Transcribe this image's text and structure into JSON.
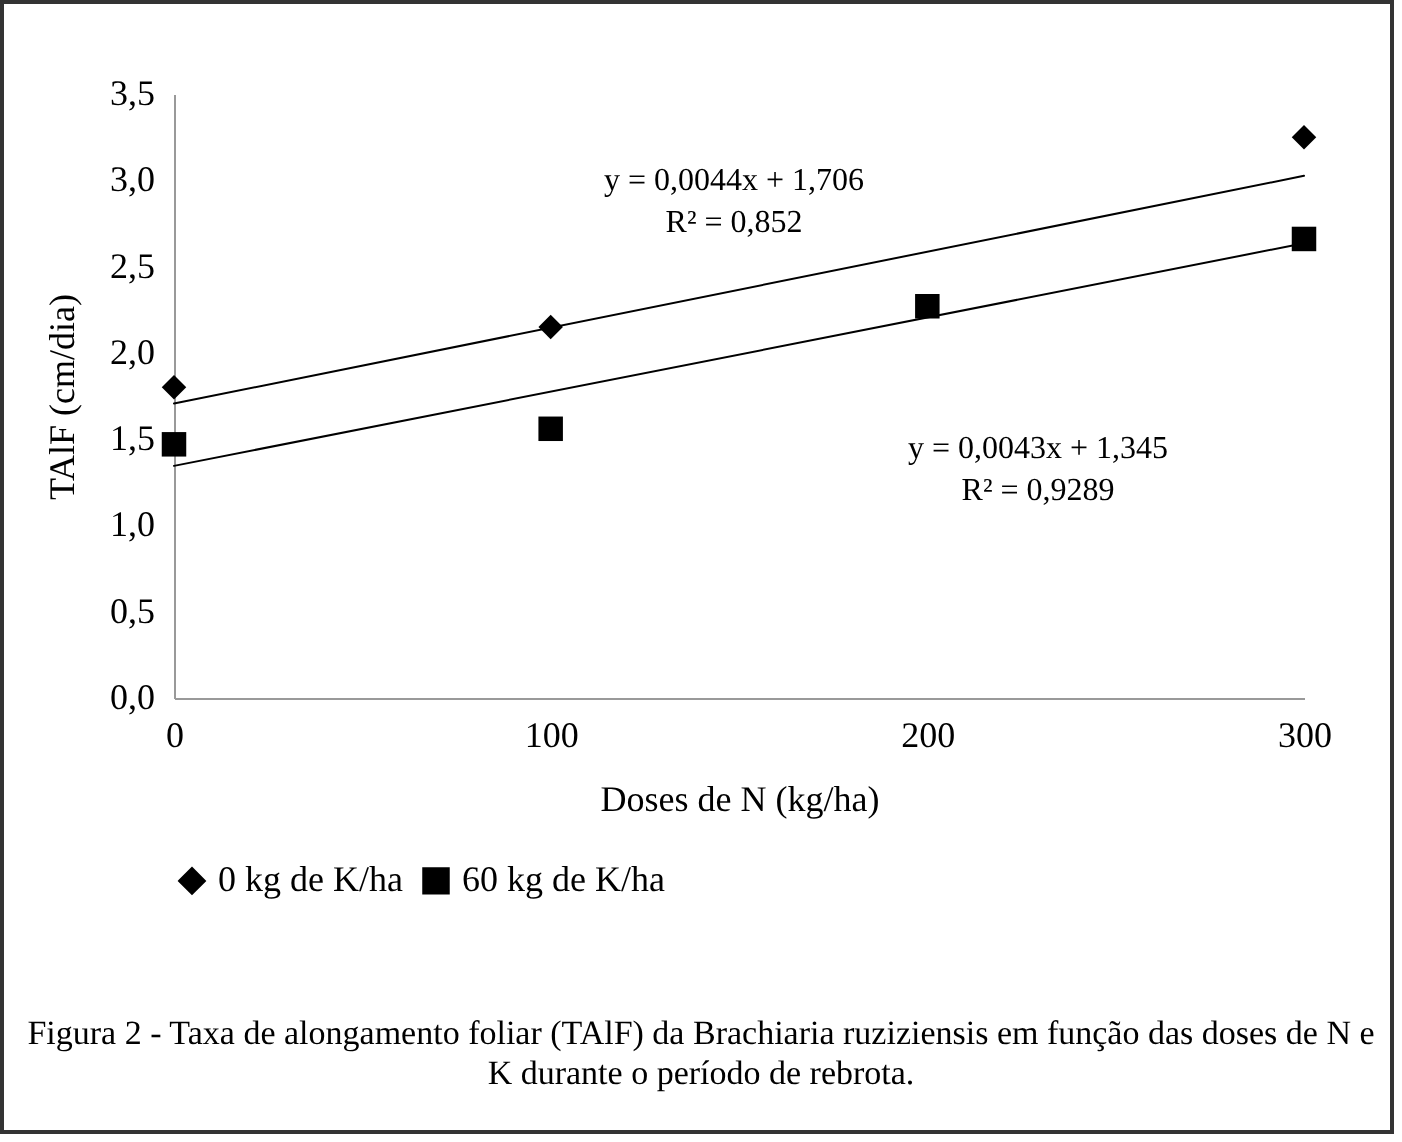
{
  "chart_data": {
    "type": "scatter",
    "xlabel": "Doses de N (kg/ha)",
    "ylabel": "TAlF (cm/dia)",
    "xlim": [
      0,
      300
    ],
    "xticks": [
      0,
      100,
      200,
      300
    ],
    "ylim": [
      0,
      3.5
    ],
    "yticks": [
      {
        "value": 0,
        "label": "0,0"
      },
      {
        "value": 0.5,
        "label": "0,5"
      },
      {
        "value": 1,
        "label": "1,0"
      },
      {
        "value": 1.5,
        "label": "1,5"
      },
      {
        "value": 2,
        "label": "2,0"
      },
      {
        "value": 2.5,
        "label": "2,5"
      },
      {
        "value": 3,
        "label": "3,0"
      },
      {
        "value": 3.5,
        "label": "3,5"
      }
    ],
    "grid": false,
    "legend": "bottom",
    "series": [
      {
        "name": "0 kg de K/ha",
        "marker": "diamond",
        "color": "#000000",
        "x": [
          0,
          100,
          300
        ],
        "values": [
          1.8,
          2.15,
          3.25
        ]
      },
      {
        "name": "60 kg de K/ha",
        "marker": "square",
        "color": "#000000",
        "x": [
          0,
          100,
          200,
          300
        ],
        "values": [
          1.47,
          1.56,
          2.27,
          2.66
        ]
      },
      {
        "type": "line",
        "color": "#000000",
        "x": [
          0,
          300
        ],
        "values": [
          1.706,
          3.026
        ]
      },
      {
        "type": "line",
        "color": "#000000",
        "x": [
          0,
          300
        ],
        "values": [
          1.345,
          2.635
        ]
      }
    ],
    "annotations": [
      "y = 0,0044x + 1,706\nR² = 0,852",
      "y = 0,0043x + 1,345\nR² = 0,9289",
      "Figura 2 - Taxa de alongamento foliar (TAlF) da Brachiaria ruziziensis em função das doses de N e K durante o período de rebrota."
    ]
  }
}
